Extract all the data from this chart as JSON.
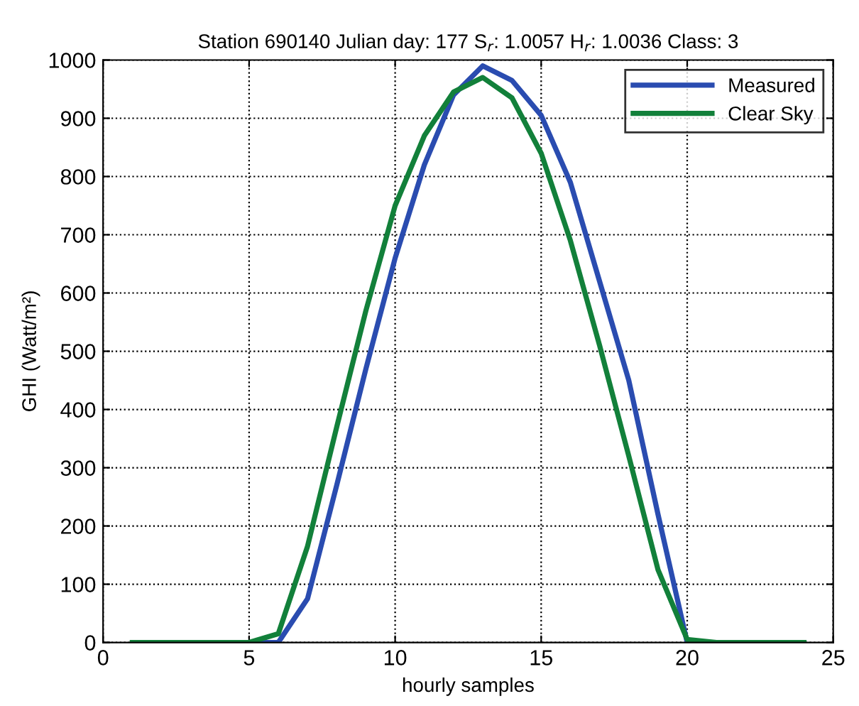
{
  "chart_data": {
    "type": "line",
    "title": "Station 690140 Julian day: 177 S$_{r}$: 1.0057 H$_{r}$: 1.0036 Class: 3",
    "xlabel": "hourly samples",
    "ylabel": "GHI (Watt/m²)",
    "x": [
      1,
      2,
      3,
      4,
      5,
      6,
      7,
      8,
      9,
      10,
      11,
      12,
      13,
      14,
      15,
      16,
      17,
      18,
      19,
      20,
      21,
      22,
      23,
      24
    ],
    "series": [
      {
        "name": "Measured",
        "color": "#2a4cb0",
        "values": [
          null,
          null,
          null,
          0,
          0,
          0,
          75,
          270,
          470,
          660,
          820,
          940,
          990,
          965,
          905,
          790,
          620,
          450,
          220,
          0,
          0,
          null,
          null,
          null
        ]
      },
      {
        "name": "Clear Sky",
        "color": "#12803a",
        "values": [
          0,
          0,
          0,
          0,
          0,
          15,
          165,
          370,
          570,
          750,
          870,
          945,
          970,
          935,
          840,
          690,
          510,
          320,
          125,
          5,
          0,
          0,
          0,
          0
        ]
      }
    ],
    "xlim": [
      0,
      25
    ],
    "xticks": [
      0,
      5,
      10,
      15,
      20,
      25
    ],
    "ylim": [
      0,
      1000
    ],
    "yticks": [
      0,
      100,
      200,
      300,
      400,
      500,
      600,
      700,
      800,
      900,
      1000
    ],
    "grid": true,
    "legend": "top right",
    "marker": "none",
    "line_style": "solid"
  }
}
